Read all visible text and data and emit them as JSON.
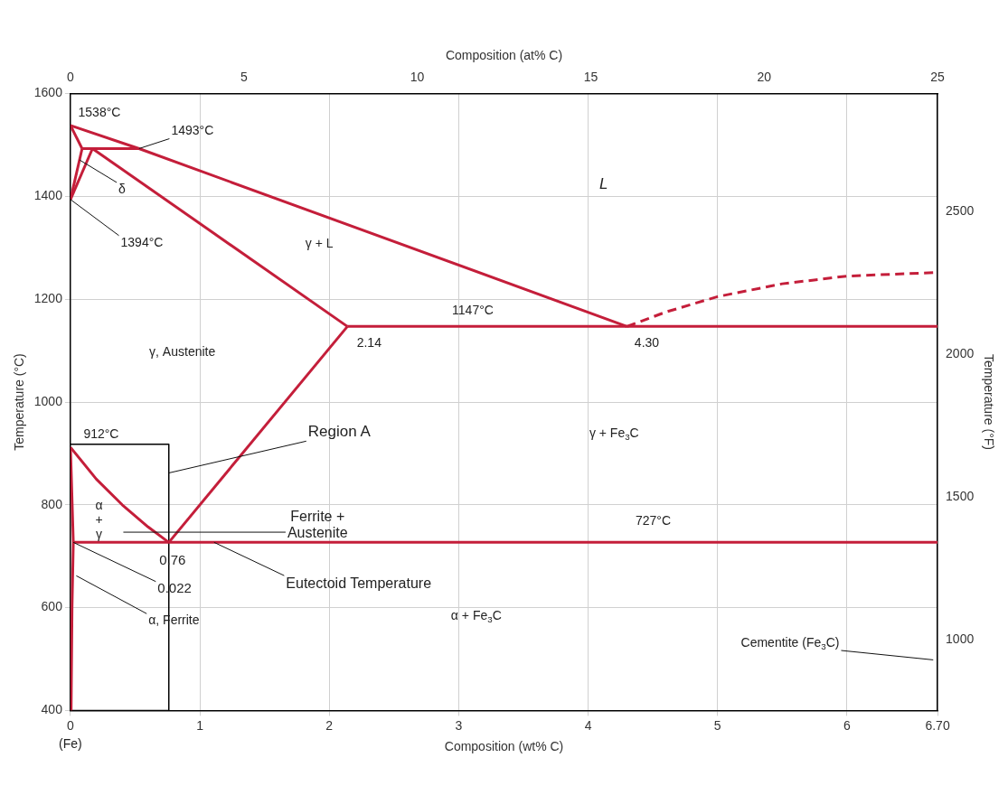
{
  "chart_data": {
    "type": "line",
    "xlabel": "Composition (wt% C)",
    "x2label": "Composition (at% C)",
    "ylabel": "Temperature (°C)",
    "y2label": "Temperature (°F)",
    "xlim": [
      0,
      6.7
    ],
    "xticks": [
      0,
      1,
      2,
      3,
      4,
      5,
      6,
      {
        "value": 6.7,
        "label": "6.70"
      }
    ],
    "x2lim": [
      0,
      25
    ],
    "x2ticks": [
      0,
      5,
      10,
      15,
      20,
      25
    ],
    "ylim": [
      400,
      1600
    ],
    "yticks": [
      400,
      600,
      800,
      1000,
      1200,
      1400,
      1600
    ],
    "y2lim": [
      752,
      2912
    ],
    "y2ticks": [
      1000,
      1500,
      2000,
      2500
    ],
    "grid": true,
    "legend": false,
    "marker": "none",
    "series": [
      {
        "color": "#c41e3a",
        "x": [
          0,
          0.53,
          4.3
        ],
        "values": [
          1538,
          1493,
          1147
        ]
      },
      {
        "color": "#c41e3a",
        "x": [
          0,
          0.09
        ],
        "values": [
          1538,
          1493
        ]
      },
      {
        "color": "#c41e3a",
        "x": [
          0.09,
          0.53
        ],
        "values": [
          1493,
          1493
        ]
      },
      {
        "color": "#c41e3a",
        "x": [
          0,
          0.09
        ],
        "values": [
          1394,
          1493
        ]
      },
      {
        "color": "#c41e3a",
        "x": [
          0,
          0.17
        ],
        "values": [
          1394,
          1493
        ]
      },
      {
        "color": "#c41e3a",
        "x": [
          0.17,
          2.14
        ],
        "values": [
          1493,
          1147
        ]
      },
      {
        "color": "#c41e3a",
        "x": [
          2.14,
          6.7
        ],
        "values": [
          1147,
          1147
        ]
      },
      {
        "color": "#c41e3a",
        "x": [
          0.76,
          2.14
        ],
        "values": [
          727,
          1147
        ]
      },
      {
        "color": "#c41e3a",
        "x": [
          0,
          0.2,
          0.4,
          0.6,
          0.76
        ],
        "values": [
          912,
          850,
          800,
          757,
          727
        ]
      },
      {
        "color": "#c41e3a",
        "x": [
          0,
          0.022,
          0.012,
          0.005
        ],
        "values": [
          912,
          727,
          600,
          400
        ]
      },
      {
        "color": "#c41e3a",
        "x": [
          0.022,
          6.7
        ],
        "values": [
          727,
          727
        ]
      },
      {
        "color": "#c41e3a",
        "line_style": "dashed",
        "x": [
          4.3,
          4.6,
          5.0,
          5.5,
          6.0,
          6.7
        ],
        "values": [
          1147,
          1175,
          1205,
          1230,
          1245,
          1252
        ]
      },
      {
        "color": "#000000",
        "x": [
          0,
          0.76,
          0.76,
          0
        ],
        "values": [
          918,
          918,
          400,
          400
        ]
      }
    ],
    "annotations": [
      {
        "text": "1538°C",
        "x": 0,
        "y": 1538
      },
      {
        "text": "1493°C",
        "x": 0.53,
        "y": 1493
      },
      {
        "text": "δ",
        "x": 0.07,
        "y": 1471
      },
      {
        "text": "1394°C",
        "x": 0,
        "y": 1394
      },
      "L",
      "γ + L",
      "1147°C",
      {
        "text": "2.14",
        "x": 2.14,
        "y": 1147
      },
      {
        "text": "4.30",
        "x": 4.3,
        "y": 1147
      },
      "γ, Austenite",
      {
        "text": "912°C",
        "x": 0,
        "y": 912
      },
      {
        "text": "Region A",
        "x": 0.76,
        "y": 862
      },
      "γ + Fe$_{3}$C",
      "α + γ",
      "Ferrite + Austenite",
      "727°C",
      {
        "text": "0.76",
        "x": 0.76,
        "y": 727
      },
      {
        "text": "0.022",
        "x": 0.022,
        "y": 727
      },
      {
        "text": "Eutectoid Temperature",
        "x": 1.11,
        "y": 727
      },
      {
        "text": "α, Ferrite",
        "x": 0.045,
        "y": 662
      },
      "α + Fe$_{3}$C",
      "Cementite (Fe$_{3}$C)",
      "(Fe)"
    ]
  }
}
